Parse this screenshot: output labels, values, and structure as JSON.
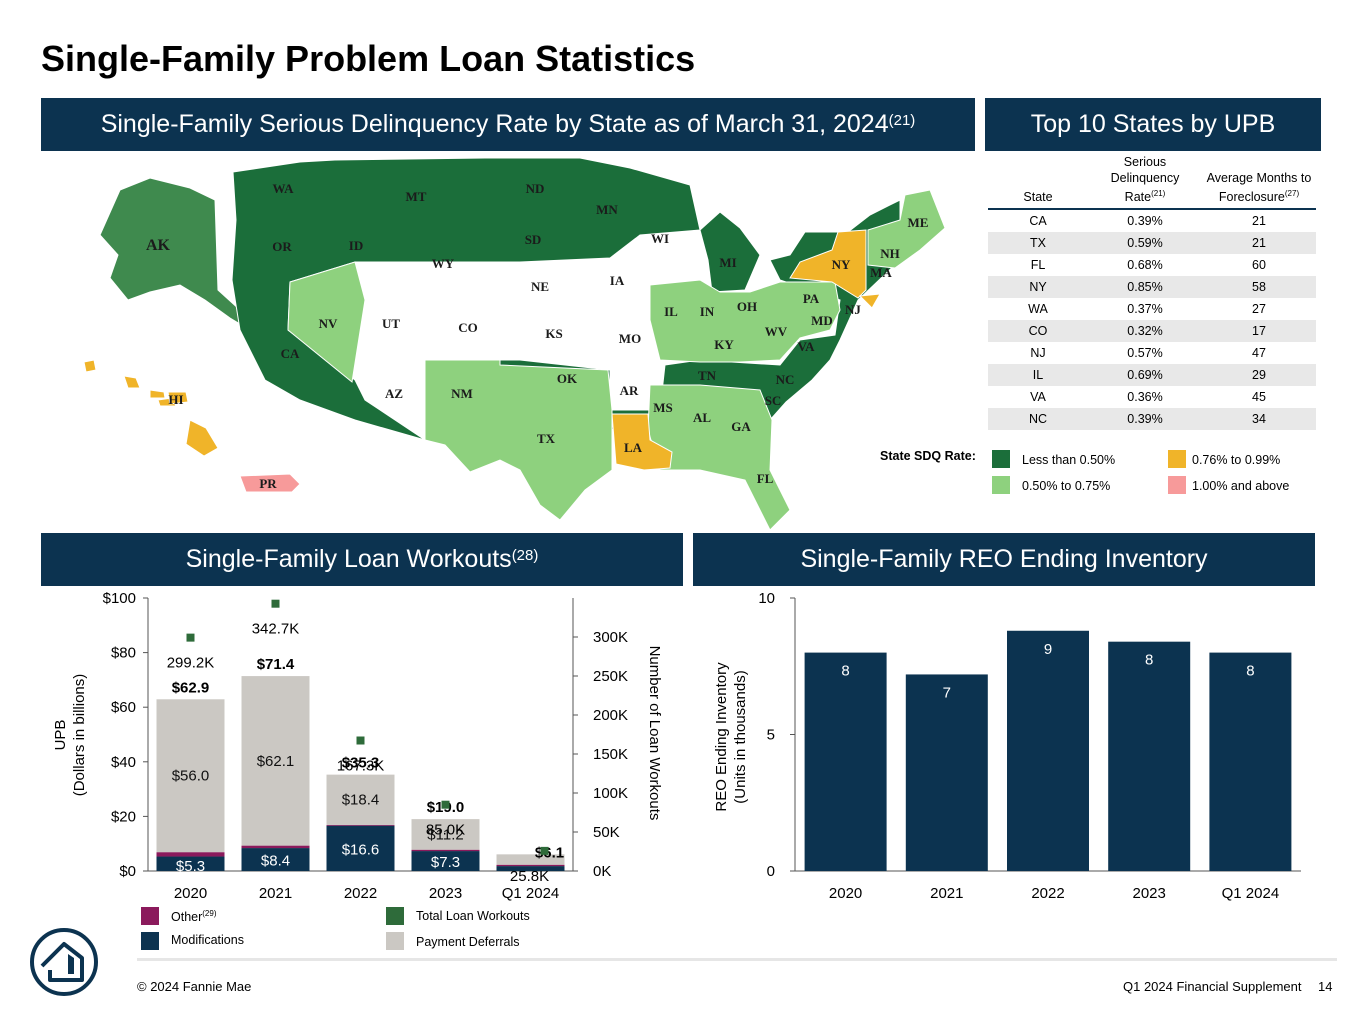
{
  "title": "Single-Family Problem Loan Statistics",
  "map_banner": {
    "text": "Single-Family Serious Delinquency Rate by State as of March 31, 2024",
    "sup": "(21)"
  },
  "top10_banner": {
    "text": "Top 10 States by UPB"
  },
  "top10_table": {
    "headers": {
      "state": "State",
      "sdq": "Serious Delinquency Rate",
      "sdq_sup": "(21)",
      "months": "Average Months to Foreclosure",
      "months_sup": "(27)"
    },
    "rows": [
      {
        "state": "CA",
        "sdq": "0.39%",
        "months": "21"
      },
      {
        "state": "TX",
        "sdq": "0.59%",
        "months": "21"
      },
      {
        "state": "FL",
        "sdq": "0.68%",
        "months": "60"
      },
      {
        "state": "NY",
        "sdq": "0.85%",
        "months": "58"
      },
      {
        "state": "WA",
        "sdq": "0.37%",
        "months": "27"
      },
      {
        "state": "CO",
        "sdq": "0.32%",
        "months": "17"
      },
      {
        "state": "NJ",
        "sdq": "0.57%",
        "months": "47"
      },
      {
        "state": "IL",
        "sdq": "0.69%",
        "months": "29"
      },
      {
        "state": "VA",
        "sdq": "0.36%",
        "months": "45"
      },
      {
        "state": "NC",
        "sdq": "0.39%",
        "months": "34"
      }
    ]
  },
  "map_legend": {
    "title": "State SDQ Rate:",
    "items": [
      {
        "label": "Less than 0.50%",
        "color": "#1b6e3a"
      },
      {
        "label": "0.76% to 0.99%",
        "color": "#f0b429"
      },
      {
        "label": "0.50% to 0.75%",
        "color": "#8ed17e"
      },
      {
        "label": "1.00% and above",
        "color": "#f79a9a"
      }
    ]
  },
  "map": {
    "labels": [
      "WA",
      "MT",
      "ND",
      "MN",
      "ME",
      "AK",
      "OR",
      "ID",
      "WY",
      "SD",
      "WI",
      "MI",
      "NY",
      "NH",
      "MA",
      "NV",
      "UT",
      "CO",
      "NE",
      "IA",
      "IL",
      "IN",
      "OH",
      "PA",
      "NJ",
      "MD",
      "CA",
      "KS",
      "MO",
      "WV",
      "VA",
      "KY",
      "TN",
      "NC",
      "OK",
      "AR",
      "AZ",
      "NM",
      "MS",
      "AL",
      "GA",
      "SC",
      "TX",
      "LA",
      "FL",
      "HI",
      "PR"
    ],
    "colors": {
      "dark": "#1b6e3a",
      "alaska": "#3f8a4e",
      "light": "#8ed17e",
      "gold": "#f0b429",
      "pink": "#f79a9a"
    }
  },
  "workouts_banner": {
    "text": "Single-Family Loan Workouts",
    "sup": "(28)"
  },
  "reo_banner": {
    "text": "Single-Family REO Ending Inventory"
  },
  "chart_data": [
    {
      "type": "bar",
      "subtype": "stacked-bar-with-markers",
      "categories": [
        "2020",
        "2021",
        "2022",
        "2023",
        "Q1 2024"
      ],
      "series": [
        {
          "name": "Modifications",
          "values": [
            5.3,
            8.4,
            16.6,
            7.3,
            1.8
          ],
          "labels": [
            "$5.3",
            "$8.4",
            "$16.6",
            "$7.3",
            ""
          ],
          "color": "#0c3350"
        },
        {
          "name": "Other",
          "name_sup": "(29)",
          "values": [
            1.6,
            0.9,
            0.3,
            0.5,
            0.5
          ],
          "color": "#8b1a5c"
        },
        {
          "name": "Payment Deferrals",
          "values": [
            56.0,
            62.1,
            18.4,
            11.2,
            3.8
          ],
          "labels": [
            "$56.0",
            "$62.1",
            "$18.4",
            "$11.2",
            ""
          ],
          "color": "#cbc8c3"
        }
      ],
      "totals": [
        "$62.9",
        "$71.4",
        "$35.3",
        "$19.0",
        "$6.1"
      ],
      "total_values": [
        62.9,
        71.4,
        35.3,
        19.0,
        6.1
      ],
      "markers": {
        "name": "Total Loan Workouts",
        "color": "#2e6b3a",
        "values": [
          299.2,
          342.7,
          167.3,
          85.0,
          25.8
        ],
        "labels": [
          "299.2K",
          "342.7K",
          "167.3K",
          "85.0K",
          "25.8K"
        ]
      },
      "ylabel_left": [
        "UPB",
        "(Dollars in billions)"
      ],
      "ylabel_right": "Number of Loan Workouts",
      "ylim_left": [
        0,
        100
      ],
      "yticks_left": [
        "$0",
        "$20",
        "$40",
        "$60",
        "$80",
        "$100"
      ],
      "ylim_right": [
        0,
        350
      ],
      "yticks_right": [
        "0K",
        "50K",
        "100K",
        "150K",
        "200K",
        "250K",
        "300K"
      ],
      "legend_placement": "bottom"
    },
    {
      "type": "bar",
      "categories": [
        "2020",
        "2021",
        "2022",
        "2023",
        "Q1 2024"
      ],
      "values": [
        8.0,
        7.2,
        8.8,
        8.4,
        8.0
      ],
      "labels": [
        "8",
        "7",
        "9",
        "8",
        "8"
      ],
      "color": "#0c3350",
      "ylabel": [
        "REO Ending Inventory",
        "(Units in thousands)"
      ],
      "ylim": [
        0,
        10
      ],
      "yticks": [
        "0",
        "5",
        "10"
      ]
    }
  ],
  "footer": {
    "copyright": "© 2024 Fannie Mae",
    "supplement": "Q1 2024 Financial Supplement",
    "page": "14"
  }
}
